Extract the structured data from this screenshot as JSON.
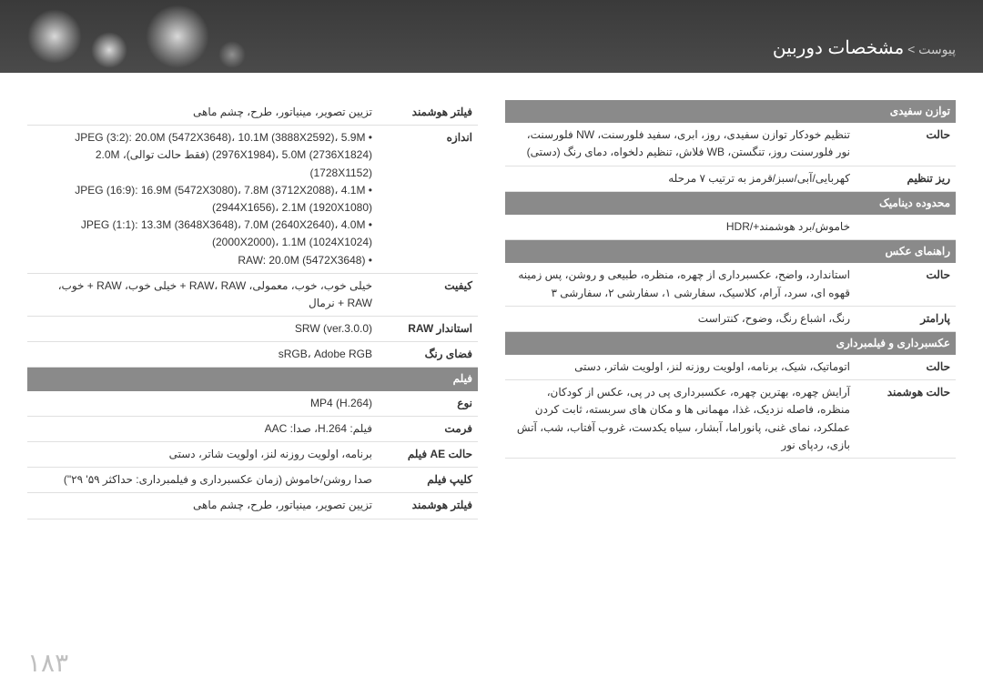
{
  "header": {
    "title": "مشخصات دوربین",
    "prefix": "پیوست > "
  },
  "page_number": "۱۸۳",
  "right_col": {
    "sections": [
      {
        "type": "section",
        "label": "توازن سفیدی"
      },
      {
        "type": "row",
        "label": "حالت",
        "value": "تنظیم خودکار توازن سفیدی، روز، ابری، سفید فلورسنت، NW فلورسنت، نور فلورسنت روز، تنگستن، WB فلاش، تنظیم دلخواه، دمای رنگ (دستی)"
      },
      {
        "type": "row",
        "label": "ریز تنظیم",
        "value": "کهربایی/آبی/سبز/قرمز به ترتیب ۷ مرحله"
      },
      {
        "type": "section",
        "label": "محدوده دینامیک"
      },
      {
        "type": "row",
        "label": "",
        "value": "خاموش/برد هوشمند+/HDR"
      },
      {
        "type": "section",
        "label": "راهنمای عکس"
      },
      {
        "type": "row",
        "label": "حالت",
        "value": "استاندارد، واضح، عکسبرداری از چهره، منظره، طبیعی و روشن، پس زمینه قهوه ای، سرد، آرام، کلاسیک، سفارشی ۱، سفارشی ۲، سفارشی ۳"
      },
      {
        "type": "row",
        "label": "پارامتر",
        "value": "رنگ، اشباع رنگ، وضوح، کنتراست"
      },
      {
        "type": "section",
        "label": "عکسبرداری و فیلمبرداری"
      },
      {
        "type": "row",
        "label": "حالت",
        "value": "اتوماتیک، شیک، برنامه، اولویت روزنه لنز، اولویت شاتر، دستی"
      },
      {
        "type": "row",
        "label": "حالت هوشمند",
        "value": "آرایش چهره، بهترین چهره، عکسبرداری پی در پی، عکس از کودکان، منظره، فاصله نزدیک، غذا، مهمانی ها و مکان های سربسته، ثابت کردن عملکرد، نمای غنی، پانوراما، آبشار، سیاه یکدست، غروب آفتاب، شب، آتش بازی، ردپای نور"
      }
    ]
  },
  "left_col": {
    "sections": [
      {
        "type": "row",
        "label": "فیلتر هوشمند",
        "value": "تزیین تصویر، مینیاتور، طرح، چشم ماهی"
      },
      {
        "type": "row",
        "label": "اندازه",
        "value": "• JPEG (3:2): ‎20.0M (5472X3648)‎، ‎10.1M (3888X2592)‎، ‎5.9M (2976X1984)‎، ‎5.0M (2736X1824)‎ (فقط حالت توالی)، ‎2.0M (1728X1152)‎\n• JPEG (16:9): ‎16.9M (5472X3080)‎، ‎7.8M (3712X2088)‎، ‎4.1M (2944X1656)‎، ‎2.1M (1920X1080)‎\n• JPEG (1:1): ‎13.3M (3648X3648)‎، ‎7.0M (2640X2640)‎، ‎4.0M (2000X2000)‎، ‎1.1M (1024X1024)‎\n• RAW: ‎20.0M (5472X3648)‎"
      },
      {
        "type": "row",
        "label": "کیفیت",
        "value": "خیلی خوب، خوب، معمولی، RAW، RAW + خیلی خوب، RAW + خوب، RAW + نرمال"
      },
      {
        "type": "row",
        "label": "استاندار RAW",
        "value": "SRW (ver.3.0.0)"
      },
      {
        "type": "row",
        "label": "فضای رنگ",
        "value": "sRGB، Adobe RGB"
      },
      {
        "type": "section",
        "label": "فیلم"
      },
      {
        "type": "row",
        "label": "نوع",
        "value": "MP4 (H.264)"
      },
      {
        "type": "row",
        "label": "فرمت",
        "value": "فیلم: H.264، صدا: AAC"
      },
      {
        "type": "row",
        "label": "حالت AE فیلم",
        "value": "برنامه، اولویت روزنه لنز، اولویت شاتر، دستی"
      },
      {
        "type": "row",
        "label": "کلیپ فیلم",
        "value": "صدا روشن/خاموش (زمان عکسبرداری و فیلمبرداری: حداکثر ۵۹' ۲۹\")"
      },
      {
        "type": "row",
        "label": "فیلتر هوشمند",
        "value": "تزیین تصویر، مینیاتور، طرح، چشم ماهی"
      }
    ]
  }
}
